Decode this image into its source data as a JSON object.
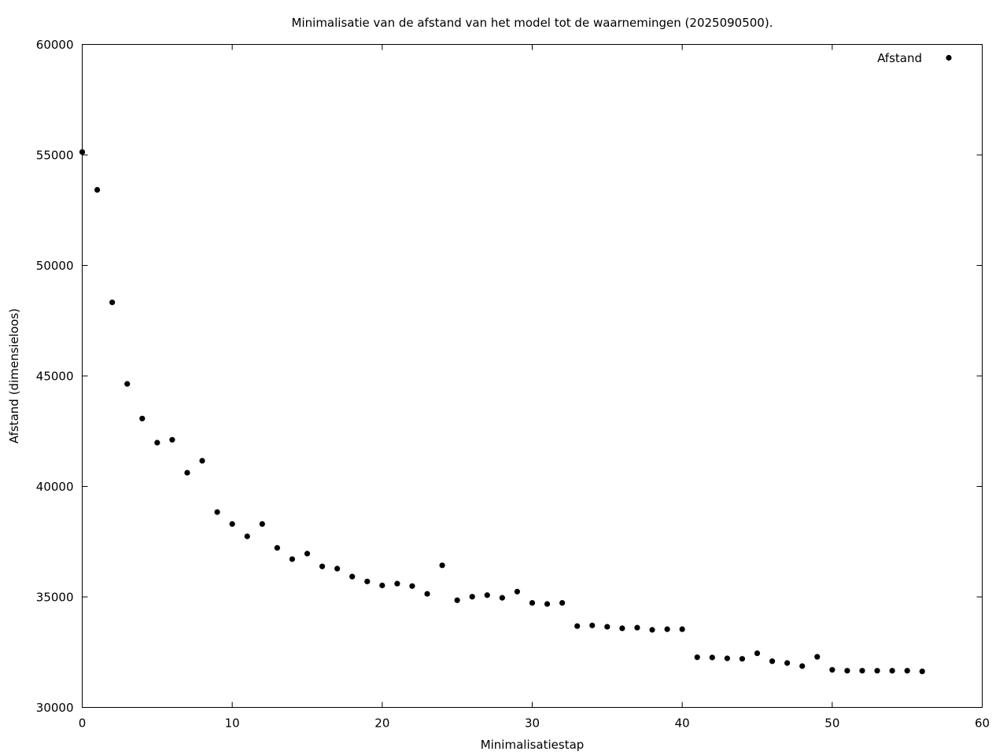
{
  "chart_data": {
    "type": "scatter",
    "title": "Minimalisatie van de afstand van het model tot de waarnemingen (2025090500).",
    "xlabel": "Minimalisatiestap",
    "ylabel": "Afstand (dimensieloos)",
    "xlim": [
      0,
      60
    ],
    "ylim": [
      30000,
      60000
    ],
    "x_ticks": [
      "0",
      "10",
      "20",
      "30",
      "40",
      "50",
      "60"
    ],
    "y_ticks": [
      "30000",
      "35000",
      "40000",
      "45000",
      "50000",
      "55000",
      "60000"
    ],
    "grid": false,
    "legend_position": "top-right",
    "series": [
      {
        "name": "Afstand",
        "color": "#000000",
        "marker": "filled-circle",
        "x": [
          0,
          1,
          2,
          3,
          4,
          5,
          6,
          7,
          8,
          9,
          10,
          11,
          12,
          13,
          14,
          15,
          16,
          17,
          18,
          19,
          20,
          21,
          22,
          23,
          24,
          25,
          26,
          27,
          28,
          29,
          30,
          31,
          32,
          33,
          34,
          35,
          36,
          37,
          38,
          39,
          40,
          41,
          42,
          43,
          44,
          45,
          46,
          47,
          48,
          49,
          50,
          51,
          52,
          53,
          54,
          55,
          56
        ],
        "y": [
          55130,
          53420,
          48330,
          44640,
          43070,
          41980,
          42110,
          40620,
          41160,
          38840,
          38300,
          37740,
          38300,
          37220,
          36710,
          36960,
          36380,
          36280,
          35920,
          35700,
          35520,
          35600,
          35490,
          35140,
          36430,
          34850,
          35010,
          35080,
          34960,
          35240,
          34730,
          34680,
          34730,
          33680,
          33710,
          33650,
          33580,
          33610,
          33510,
          33540,
          33540,
          32270,
          32260,
          32220,
          32200,
          32450,
          32090,
          32010,
          31870,
          32290,
          31700,
          31660,
          31660,
          31660,
          31660,
          31660,
          31630
        ]
      }
    ]
  }
}
